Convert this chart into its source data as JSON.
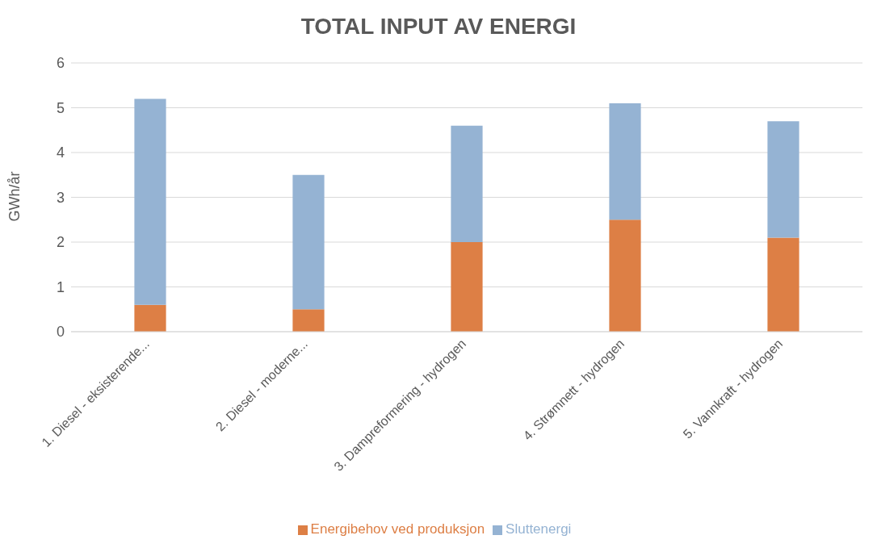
{
  "chart_data": {
    "type": "bar",
    "title": "TOTAL INPUT AV ENERGI",
    "ylabel": "GWh/år",
    "stacked": true,
    "categories": [
      "1. Diesel - eksisterende...",
      "2. Diesel - moderne...",
      "3. Dampreformering - hydrogen",
      "4. Strømnett - hydrogen",
      "5. Vannkraft - hydrogen"
    ],
    "series": [
      {
        "name": "Energibehov ved produksjon",
        "color": "#dd7f45",
        "values": [
          0.6,
          0.5,
          2.0,
          2.5,
          2.1
        ]
      },
      {
        "name": "Sluttenergi",
        "color": "#95b3d3",
        "values": [
          4.6,
          3.0,
          2.6,
          2.6,
          2.6
        ]
      }
    ],
    "ylim": [
      0,
      6
    ],
    "yticks": [
      0,
      1,
      2,
      3,
      4,
      5,
      6
    ],
    "grid": "y",
    "legend": "bottom"
  }
}
